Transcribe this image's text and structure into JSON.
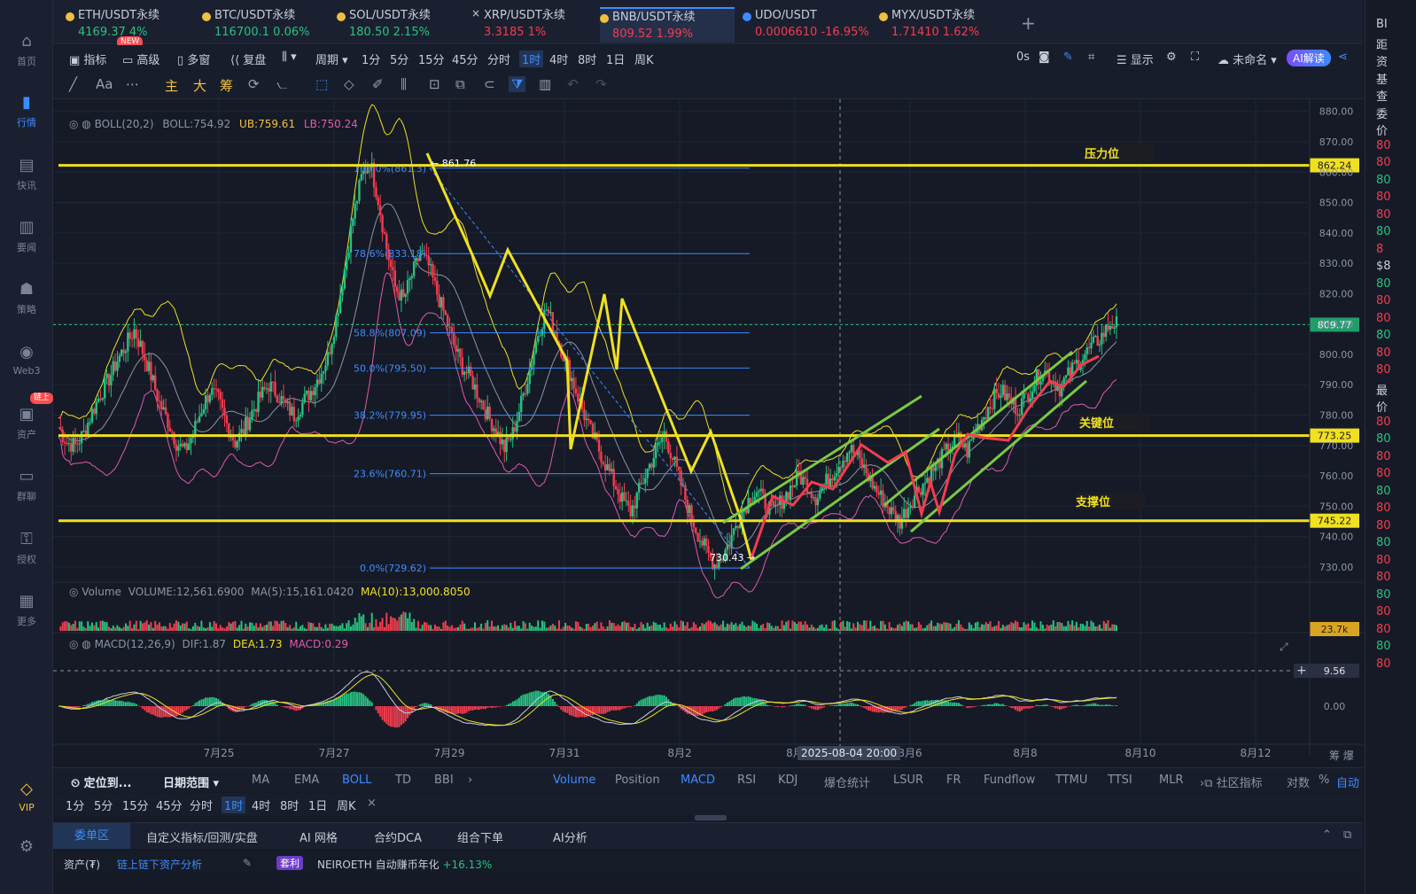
{
  "nav": [
    {
      "label": "首页",
      "icon": "home-icon"
    },
    {
      "label": "行情",
      "icon": "chart-bars-icon",
      "active": true
    },
    {
      "label": "快讯",
      "icon": "flash-news-icon"
    },
    {
      "label": "要闻",
      "icon": "document-icon"
    },
    {
      "label": "策略",
      "icon": "robot-icon"
    },
    {
      "label": "Web3",
      "icon": "web3-icon"
    },
    {
      "label": "资产",
      "icon": "wallet-icon",
      "badge": "链上"
    },
    {
      "label": "群聊",
      "icon": "chat-icon"
    },
    {
      "label": "授权",
      "icon": "key-icon"
    },
    {
      "label": "更多",
      "icon": "grid-icon"
    },
    {
      "label": "VIP",
      "icon": "diamond-icon"
    }
  ],
  "tabs": [
    {
      "name": "ETH/USDT永续",
      "price": "4169.37",
      "change": "4%",
      "dir": "g",
      "badge": "NEW"
    },
    {
      "name": "BTC/USDT永续",
      "price": "116700.1",
      "change": "0.06%",
      "dir": "g"
    },
    {
      "name": "SOL/USDT永续",
      "price": "180.50",
      "change": "2.15%",
      "dir": "g"
    },
    {
      "name": "XRP/USDT永续",
      "price": "3.3185",
      "change": "1%",
      "dir": "r"
    },
    {
      "name": "BNB/USDT永续",
      "price": "809.52",
      "change": "1.99%",
      "dir": "r",
      "active": true
    },
    {
      "name": "UDO/USDT",
      "price": "0.0006610",
      "change": "-16.95%",
      "dir": "r"
    },
    {
      "name": "MYX/USDT永续",
      "price": "1.71410",
      "change": "1.62%",
      "dir": "r"
    }
  ],
  "toolbar": {
    "indicators": "指标",
    "advanced": "高级",
    "multi": "多窗",
    "replay": "复盘",
    "period": "周期",
    "intervals": [
      "1分",
      "5分",
      "15分",
      "45分",
      "分时",
      "1时",
      "4时",
      "8时",
      "1日",
      "周K"
    ],
    "active_interval": "1时",
    "countdown": "0s",
    "display": "显示",
    "unnamed": "未命名",
    "ai": "AI解读"
  },
  "drawtools": {
    "main": "主",
    "big": "大",
    "chip": "筹",
    "font": "Aa"
  },
  "chart_data": {
    "type": "candlestick",
    "symbol": "BNB/USDT永续",
    "indicators": {
      "boll": "BOLL(20,2)",
      "boll_mid": "BOLL:754.92",
      "boll_ub": "UB:759.61",
      "boll_lb": "LB:750.24",
      "volume": "Volume",
      "volume_val": "VOLUME:12,561.6900",
      "vol_ma5": "MA(5):15,161.0420",
      "vol_ma10": "MA(10):13,000.8050",
      "macd": "MACD(12,26,9)",
      "dif": "DIF:1.87",
      "dea": "DEA:1.73",
      "macd_val": "MACD:0.29"
    },
    "price_axis": [
      "880.00",
      "870.00",
      "860.00",
      "850.00",
      "840.00",
      "830.00",
      "820.00",
      "810.00",
      "800.00",
      "790.00",
      "780.00",
      "770.00",
      "760.00",
      "750.00",
      "740.00",
      "730.00"
    ],
    "price_range": [
      725,
      884
    ],
    "current_price": "809.77",
    "levels": [
      {
        "price": 862.24,
        "label": "862.24",
        "name": "压力位"
      },
      {
        "price": 773.25,
        "label": "773.25",
        "name": "关键位"
      },
      {
        "price": 745.22,
        "label": "745.22",
        "name": "支撑位"
      }
    ],
    "fib": [
      {
        "price": 861.3,
        "label": "100.0%(861.3)"
      },
      {
        "price": 833.18,
        "label": "78.6%(833.18)"
      },
      {
        "price": 807.09,
        "label": "58.8%(807.09)"
      },
      {
        "price": 795.5,
        "label": "50.0%(795.50)"
      },
      {
        "price": 779.95,
        "label": "38.2%(779.95)"
      },
      {
        "price": 760.71,
        "label": "23.6%(760.71)"
      },
      {
        "price": 729.62,
        "label": "0.0%(729.62)"
      }
    ],
    "high_mark": "861.76",
    "low_mark": "730.43",
    "volume_tag": "23.7k",
    "macd_tags": [
      "9.56",
      "0.00"
    ],
    "x_labels": [
      "7月25",
      "7月27",
      "7月29",
      "7月31",
      "8月2",
      "8月",
      "8月6",
      "8月8",
      "8月10",
      "8月12"
    ],
    "crosshair_date": "2025-08-04 20:00",
    "close_path": [
      776,
      771,
      770,
      774,
      781,
      787,
      792,
      798,
      803,
      808,
      801,
      793,
      784,
      778,
      771,
      768,
      774,
      782,
      788,
      785,
      777,
      771,
      775,
      781,
      786,
      790,
      787,
      783,
      780,
      784,
      788,
      793,
      799,
      812,
      828,
      845,
      858,
      864,
      851,
      835,
      822,
      818,
      826,
      833,
      829,
      820,
      812,
      803,
      796,
      792,
      786,
      780,
      775,
      769,
      774,
      784,
      795,
      807,
      815,
      808,
      800,
      792,
      784,
      776,
      770,
      764,
      758,
      752,
      748,
      755,
      762,
      768,
      774,
      766,
      757,
      748,
      741,
      735,
      731,
      734,
      740,
      747,
      752,
      755,
      751,
      748,
      752,
      756,
      760,
      757,
      753,
      757,
      761,
      765,
      769,
      766,
      761,
      756,
      752,
      748,
      745,
      750,
      755,
      758,
      762,
      766,
      770,
      772,
      768,
      775,
      780,
      785,
      788,
      785,
      782,
      786,
      791,
      795,
      792,
      789,
      793,
      797,
      800,
      803,
      806,
      810
    ]
  },
  "bottom": {
    "locate": "定位到...",
    "daterange": "日期范围",
    "indicators": [
      "MA",
      "EMA",
      "BOLL",
      "TD",
      "BBI"
    ],
    "subind": [
      "Volume",
      "Position",
      "MACD",
      "RSI",
      "KDJ",
      "爆仓统计",
      "LSUR",
      "FR",
      "Fundflow",
      "TTMU",
      "TTSI",
      "MLR"
    ],
    "community": "社区指标",
    "log": "对数",
    "pct": "%",
    "auto": "自动",
    "intervals": [
      "1分",
      "5分",
      "15分",
      "45分",
      "分时",
      "1时",
      "4时",
      "8时",
      "1日",
      "周K"
    ]
  },
  "panel_tabs": [
    "委单区",
    "自定义指标/回测/实盘",
    "AI 网格",
    "合约DCA",
    "组合下单",
    "AI分析"
  ],
  "status": {
    "assets": "资产(₮)",
    "onchain": "链上链下资产分析",
    "tag": "套利",
    "promo": "NEIROETH 自动赚币年化",
    "promo_val": "+16.13%"
  },
  "right_strip": [
    "BI",
    "距",
    "资",
    "基",
    "查",
    "委",
    "价",
    "80",
    "80",
    "80",
    "80",
    "80",
    "80",
    "8",
    "$8",
    "80",
    "80",
    "80",
    "80",
    "80",
    "80",
    "最",
    "价",
    "80",
    "80",
    "80",
    "80",
    "80",
    "80",
    "80",
    "80",
    "80",
    "80",
    "80",
    "80",
    "80",
    "80",
    "80"
  ]
}
